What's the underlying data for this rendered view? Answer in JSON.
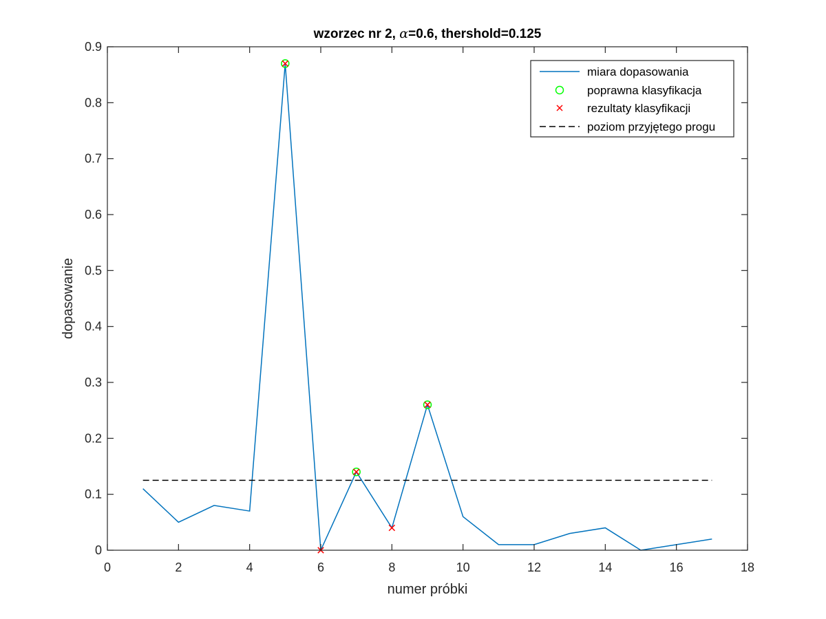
{
  "chart_data": {
    "type": "line",
    "title": {
      "prefix": "wzorzec nr 2, ",
      "symbol": "α",
      "suffix": "=0.6, thershold=0.125"
    },
    "xlabel": "numer próbki",
    "ylabel": "dopasowanie",
    "xlim": [
      0,
      18
    ],
    "ylim": [
      0,
      0.9
    ],
    "x_ticks": [
      0,
      2,
      4,
      6,
      8,
      10,
      12,
      14,
      16,
      18
    ],
    "y_ticks": [
      0,
      0.1,
      0.2,
      0.3,
      0.4,
      0.5,
      0.6,
      0.7,
      0.8,
      0.9
    ],
    "x_tick_labels": [
      "0",
      "2",
      "4",
      "6",
      "8",
      "10",
      "12",
      "14",
      "16",
      "18"
    ],
    "y_tick_labels": [
      "0",
      "0.1",
      "0.2",
      "0.3",
      "0.4",
      "0.5",
      "0.6",
      "0.7",
      "0.8",
      "0.9"
    ],
    "grid": false,
    "legend_position": "top-right",
    "series": [
      {
        "name": "miara dopasowania",
        "kind": "line",
        "color": "#0072BD",
        "x": [
          1,
          2,
          3,
          4,
          5,
          6,
          7,
          8,
          9,
          10,
          11,
          12,
          13,
          14,
          15,
          16,
          17
        ],
        "y": [
          0.11,
          0.05,
          0.08,
          0.07,
          0.87,
          0.0,
          0.14,
          0.04,
          0.26,
          0.06,
          0.01,
          0.01,
          0.03,
          0.04,
          0.0,
          0.01,
          0.02
        ]
      },
      {
        "name": "poprawna klasyfikacja",
        "kind": "marker-circle",
        "color": "#00FF00",
        "x": [
          5,
          7,
          9
        ],
        "y": [
          0.87,
          0.14,
          0.26
        ]
      },
      {
        "name": "rezultaty klasyfikacji",
        "kind": "marker-x",
        "color": "#FF0000",
        "x": [
          5,
          6,
          7,
          8,
          9
        ],
        "y": [
          0.87,
          0.0,
          0.14,
          0.04,
          0.26
        ]
      },
      {
        "name": "poziom przyjętego progu",
        "kind": "dashed-line",
        "color": "#000000",
        "x": [
          1,
          17
        ],
        "y": [
          0.125,
          0.125
        ]
      }
    ]
  }
}
